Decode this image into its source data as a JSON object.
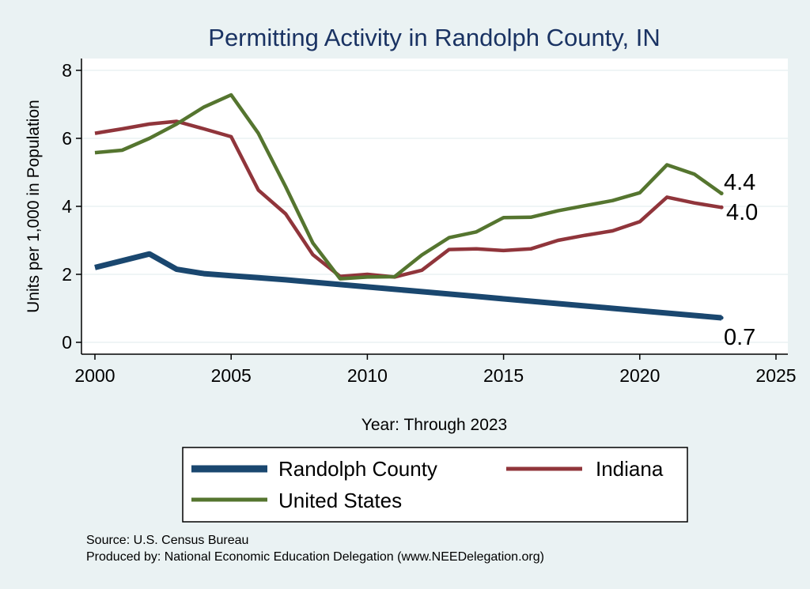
{
  "chart_data": {
    "type": "line",
    "title": "Permitting Activity in Randolph County, IN",
    "xlabel": "Year: Through 2023",
    "ylabel": "Units per 1,000 in Population",
    "xlim": [
      2000,
      2025
    ],
    "ylim": [
      0,
      8
    ],
    "x_ticks": [
      "2000",
      "2005",
      "2010",
      "2015",
      "2020",
      "2025"
    ],
    "y_ticks": [
      "0",
      "2",
      "4",
      "6",
      "8"
    ],
    "grid": true,
    "legend_position": "bottom",
    "x": [
      2000,
      2001,
      2002,
      2003,
      2004,
      2005,
      2006,
      2007,
      2008,
      2009,
      2010,
      2011,
      2012,
      2013,
      2014,
      2015,
      2016,
      2017,
      2018,
      2019,
      2020,
      2021,
      2022,
      2023
    ],
    "series": [
      {
        "name": "Randolph County",
        "color": "#1a476f",
        "values": [
          2.2,
          2.4,
          2.6,
          2.15,
          2.02,
          1.96,
          1.9,
          1.84,
          1.77,
          1.7,
          1.63,
          1.56,
          1.49,
          1.42,
          1.35,
          1.28,
          1.21,
          1.14,
          1.07,
          1.0,
          0.93,
          0.86,
          0.79,
          0.72
        ],
        "end_label": "0.7"
      },
      {
        "name": "Indiana",
        "color": "#90353b",
        "values": [
          6.15,
          6.28,
          6.42,
          6.5,
          6.28,
          6.05,
          4.48,
          3.78,
          2.58,
          1.94,
          2.0,
          1.92,
          2.12,
          2.73,
          2.75,
          2.7,
          2.75,
          3.0,
          3.15,
          3.28,
          3.55,
          4.27,
          4.1,
          3.97
        ],
        "end_label": "4.0"
      },
      {
        "name": "United States",
        "color": "#55752f",
        "values": [
          5.58,
          5.65,
          6.0,
          6.42,
          6.92,
          7.28,
          6.15,
          4.58,
          2.92,
          1.87,
          1.92,
          1.93,
          2.57,
          3.08,
          3.25,
          3.67,
          3.68,
          3.87,
          4.02,
          4.17,
          4.4,
          5.22,
          4.95,
          4.38
        ],
        "end_label": "4.4"
      }
    ],
    "source_lines": [
      "Source: U.S. Census Bureau",
      "Produced by: National Economic Education Delegation (www.NEEDelegation.org)"
    ]
  }
}
